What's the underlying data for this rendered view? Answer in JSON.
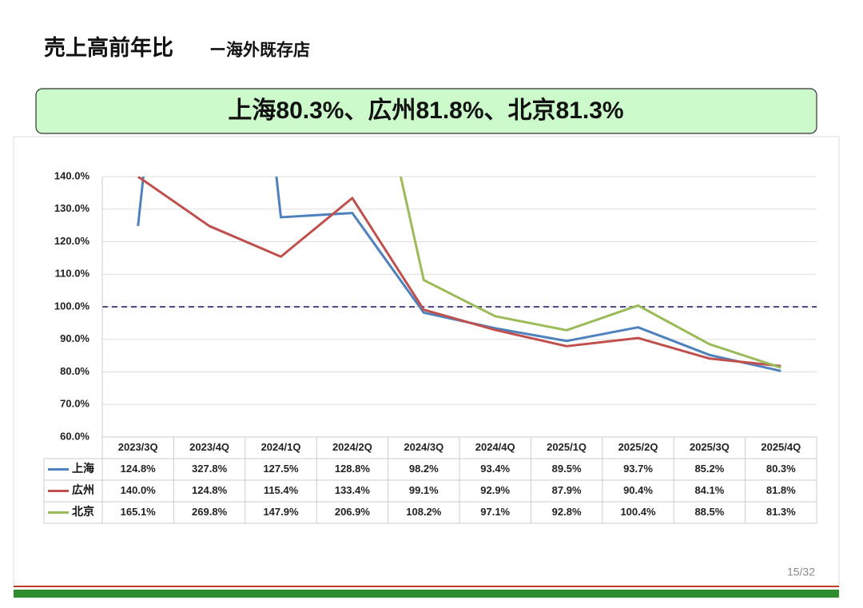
{
  "title": "売上高前年比",
  "subtitle": "ー海外既存店",
  "banner": "上海80.3%、広州81.8%、北京81.3%",
  "page_number": "15/32",
  "chart_data": {
    "type": "line",
    "categories": [
      "2023/3Q",
      "2023/4Q",
      "2024/1Q",
      "2024/2Q",
      "2024/3Q",
      "2024/4Q",
      "2025/1Q",
      "2025/2Q",
      "2025/3Q",
      "2025/4Q"
    ],
    "series": [
      {
        "name": "上海",
        "color": "#4f81bd",
        "values": [
          124.8,
          327.8,
          127.5,
          128.8,
          98.2,
          93.4,
          89.5,
          93.7,
          85.2,
          80.3
        ],
        "value_labels": [
          "124.8%",
          "327.8%",
          "127.5%",
          "128.8%",
          "98.2%",
          "93.4%",
          "89.5%",
          "93.7%",
          "85.2%",
          "80.3%"
        ]
      },
      {
        "name": "広州",
        "color": "#c0504d",
        "values": [
          140.0,
          124.8,
          115.4,
          133.4,
          99.1,
          92.9,
          87.9,
          90.4,
          84.1,
          81.8
        ],
        "value_labels": [
          "140.0%",
          "124.8%",
          "115.4%",
          "133.4%",
          "99.1%",
          "92.9%",
          "87.9%",
          "90.4%",
          "84.1%",
          "81.8%"
        ]
      },
      {
        "name": "北京",
        "color": "#9bbb59",
        "values": [
          165.1,
          269.8,
          147.9,
          206.9,
          108.2,
          97.1,
          92.8,
          100.4,
          88.5,
          81.3
        ],
        "value_labels": [
          "165.1%",
          "269.8%",
          "147.9%",
          "206.9%",
          "108.2%",
          "97.1%",
          "92.8%",
          "100.4%",
          "88.5%",
          "81.3%"
        ]
      }
    ],
    "ylim": [
      60,
      140
    ],
    "yticks": [
      {
        "value": 60,
        "label": "60.0%"
      },
      {
        "value": 70,
        "label": "70.0%"
      },
      {
        "value": 80,
        "label": "80.0%"
      },
      {
        "value": 90,
        "label": "90.0%"
      },
      {
        "value": 100,
        "label": "100.0%"
      },
      {
        "value": 110,
        "label": "110.0%"
      },
      {
        "value": 120,
        "label": "120.0%"
      },
      {
        "value": 130,
        "label": "130.0%"
      },
      {
        "value": 140,
        "label": "140.0%"
      }
    ],
    "grid": true,
    "reference_line": {
      "value": 100,
      "color": "#4a4a8c"
    }
  }
}
